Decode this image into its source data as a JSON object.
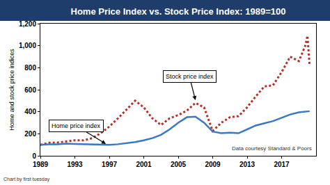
{
  "chart_data": {
    "type": "line",
    "title": "Home Price Index vs. Stock Price Index: 1989=100",
    "y_label": "Home and stock price indices",
    "annotations": [
      "Home price index",
      "Stock price index"
    ],
    "footnotes": [
      "Chart by first tuesday",
      "Data courtesy Standard & Poors"
    ],
    "x": [
      1989,
      1990,
      1991,
      1992,
      1993,
      1994,
      1995,
      1996,
      1997,
      1998,
      1999,
      2000,
      2001,
      2002,
      2003,
      2004,
      2005,
      2006,
      2007,
      2008,
      2009,
      2010,
      2011,
      2012,
      2013,
      2014,
      2015,
      2016,
      2017,
      2018,
      2019,
      2019.75,
      2020,
      2020.25
    ],
    "series": [
      {
        "name": "Stock price index",
        "color": "#b5302a",
        "line_style": "dot",
        "values": [
          100,
          118,
          120,
          130,
          140,
          140,
          160,
          205,
          265,
          340,
          420,
          500,
          440,
          340,
          280,
          340,
          370,
          410,
          480,
          440,
          225,
          300,
          350,
          360,
          440,
          540,
          630,
          640,
          760,
          900,
          860,
          1000,
          1090,
          820
        ]
      },
      {
        "name": "Home price index",
        "color": "#3a78c4",
        "line_style": "solid",
        "values": [
          100,
          105,
          105,
          110,
          108,
          105,
          103,
          100,
          100,
          105,
          115,
          125,
          140,
          160,
          190,
          240,
          300,
          350,
          355,
          300,
          220,
          205,
          210,
          205,
          240,
          275,
          295,
          315,
          345,
          375,
          395,
          400,
          400,
          405
        ]
      }
    ],
    "xlim": [
      1989,
      2021
    ],
    "xticks": [
      1989,
      1993,
      1997,
      2001,
      2005,
      2009,
      2013,
      2017
    ],
    "ylim": [
      0,
      1200
    ],
    "yticks": [
      0,
      200,
      400,
      600,
      800,
      {
        "value": 1000,
        "label": "1,000"
      },
      {
        "value": 1200,
        "label": "1,200"
      }
    ],
    "grid": false
  }
}
